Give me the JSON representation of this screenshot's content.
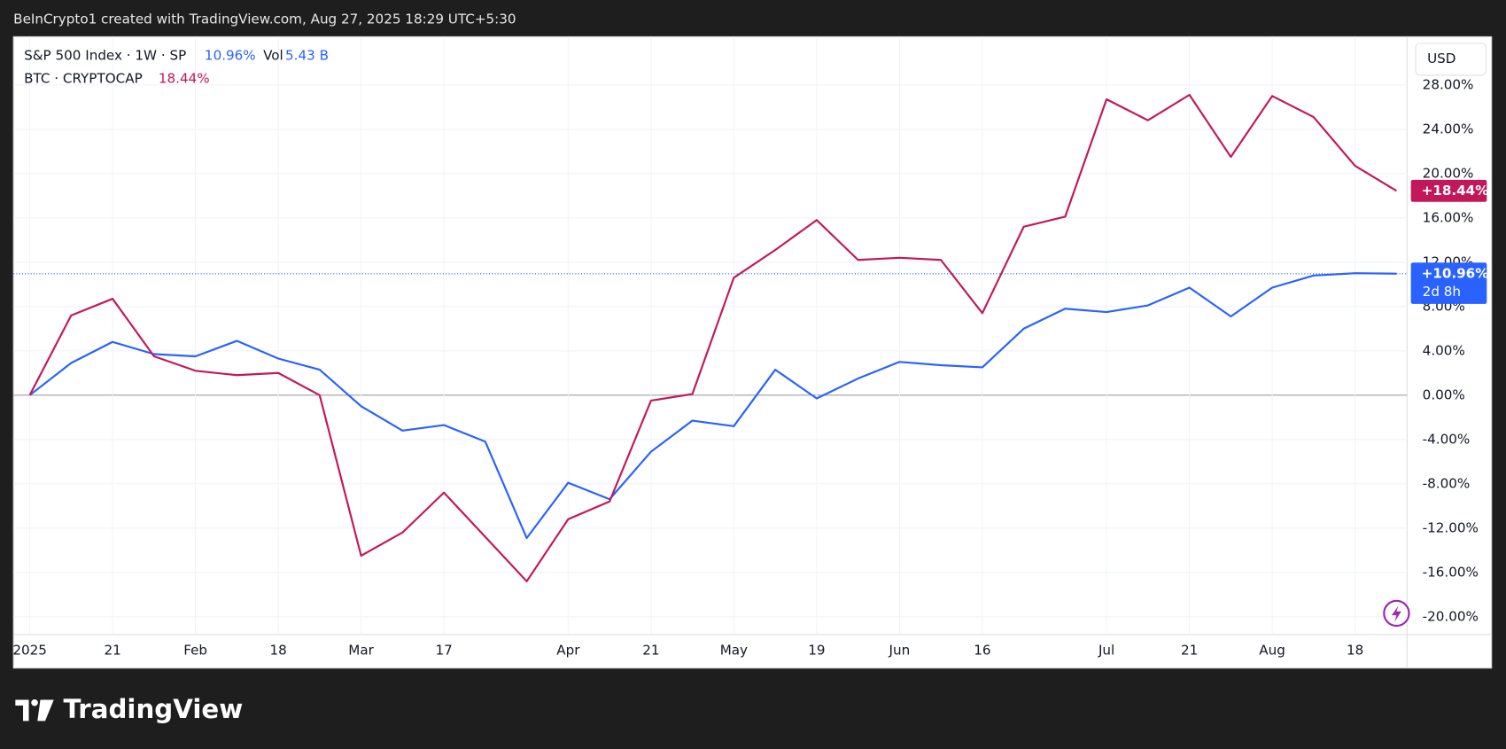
{
  "header": "BeInCrypto1 created with TradingView.com, Aug 27, 2025 18:29 UTC+5:30",
  "currency": "USD",
  "logo": "TradingView",
  "chart_data": {
    "type": "line",
    "categories": [
      "2025",
      null,
      "21",
      null,
      "Feb",
      null,
      "18",
      null,
      "Mar",
      null,
      "17",
      null,
      null,
      "Apr",
      null,
      "21",
      null,
      "May",
      null,
      "19",
      null,
      "Jun",
      null,
      "16",
      null,
      null,
      "Jul",
      null,
      "21",
      null,
      "Aug",
      null,
      "18",
      null
    ],
    "series": [
      {
        "name": "S&P 500 Index · 1W · SP",
        "color": "#2962ff",
        "legend_value": "10.96%",
        "volume_name": "Vol",
        "volume": "5.43 B",
        "price_label": "+10.96%",
        "countdown": "2d 8h",
        "values": [
          0,
          2.9,
          4.8,
          3.7,
          3.5,
          4.9,
          3.3,
          2.3,
          -1.0,
          -3.2,
          -2.7,
          -4.2,
          -12.9,
          -7.9,
          -9.4,
          -5.1,
          -2.3,
          -2.8,
          2.3,
          -0.3,
          1.5,
          3.0,
          2.7,
          2.5,
          6.0,
          7.8,
          7.5,
          8.1,
          9.7,
          7.1,
          9.7,
          10.8,
          11.0,
          10.96
        ]
      },
      {
        "name": "BTC · CRYPTOCAP",
        "color": "#c2185b",
        "legend_value": "18.44%",
        "price_label": "+18.44%",
        "values": [
          0,
          7.2,
          8.7,
          3.5,
          2.2,
          1.8,
          2.0,
          0,
          -14.5,
          -12.4,
          -8.8,
          -12.8,
          -16.8,
          -11.2,
          -9.6,
          -0.5,
          0.1,
          10.6,
          13.1,
          15.8,
          12.2,
          12.4,
          12.2,
          7.4,
          15.2,
          16.1,
          26.7,
          24.8,
          27.1,
          21.5,
          27.0,
          25.1,
          20.7,
          18.44
        ]
      }
    ],
    "ylim": [
      -21.6,
      32.35
    ],
    "yticks": [
      {
        "value": -20,
        "label": "-20.00%"
      },
      {
        "value": -16,
        "label": "-16.00%"
      },
      {
        "value": -12,
        "label": "-12.00%"
      },
      {
        "value": -8,
        "label": "-8.00%"
      },
      {
        "value": -4,
        "label": "-4.00%"
      },
      {
        "value": 0,
        "label": "0.00%"
      },
      {
        "value": 4,
        "label": "4.00%"
      },
      {
        "value": 8,
        "label": "8.00%"
      },
      {
        "value": 12,
        "label": "12.00%"
      },
      {
        "value": 16,
        "label": "16.00%"
      },
      {
        "value": 20,
        "label": "20.00%"
      },
      {
        "value": 24,
        "label": "24.00%"
      },
      {
        "value": 28,
        "label": "28.00%"
      }
    ],
    "grid": true
  }
}
